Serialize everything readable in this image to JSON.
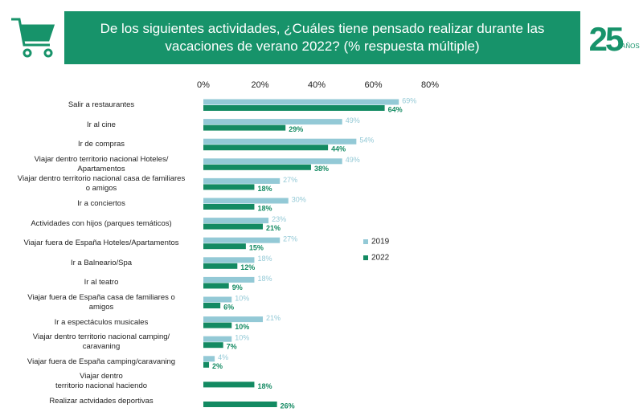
{
  "chart_data": {
    "type": "hbar",
    "title": "De los siguientes actividades, ¿Cuáles tiene pensado realizar durante las vacaciones de verano 2022? (% respuesta múltiple)",
    "categories": [
      "Salir a restaurantes",
      "Ir al cine",
      "Ir de compras",
      "Viajar dentro territorio nacional Hoteles/\nApartamentos",
      "Viajar dentro territorio nacional casa de familiares\no amigos",
      "Ir a conciertos",
      "Actividades con hijos (parques temáticos)",
      "Viajar fuera de España Hoteles/Apartamentos",
      "Ir a Balneario/Spa",
      "Ir al teatro",
      "Viajar fuera de España casa de familiares o\namigos",
      "Ir a espectáculos musicales",
      "Viajar dentro territorio nacional camping/\ncaravaning",
      "Viajar fuera de España camping/caravaning",
      "Viajar dentro\nterritorio nacional haciendo",
      "Realizar actvidades deportivas"
    ],
    "series": [
      {
        "name": "2019",
        "color": "#93c9d6",
        "values": [
          69,
          49,
          54,
          49,
          27,
          30,
          23,
          27,
          18,
          18,
          10,
          21,
          10,
          4,
          null,
          null
        ],
        "value_labels": [
          "69%",
          "49%",
          "54%",
          "49%",
          "27%",
          "30%",
          "23%",
          "27%",
          "18%",
          "18%",
          "10%",
          "21%",
          "10%",
          "4%",
          null,
          null
        ]
      },
      {
        "name": "2022",
        "color": "#138a62",
        "values": [
          64,
          29,
          44,
          38,
          18,
          18,
          21,
          15,
          12,
          9,
          6,
          10,
          7,
          2,
          18,
          26
        ],
        "value_labels": [
          "64%",
          "29%",
          "44%",
          "38%",
          "18%",
          "18%",
          "21%",
          "15%",
          "12%",
          "9%",
          "6%",
          "10%",
          "7%",
          "2%",
          "18%",
          "26%"
        ]
      }
    ],
    "xlim": [
      0,
      80
    ],
    "xticks": [
      {
        "value": 0,
        "label": "0%"
      },
      {
        "value": 20,
        "label": "20%"
      },
      {
        "value": 40,
        "label": "40%"
      },
      {
        "value": 60,
        "label": "60%"
      },
      {
        "value": 80,
        "label": "80%"
      }
    ],
    "grid": false
  },
  "logo": {
    "number": "25",
    "text": "AÑOS"
  }
}
